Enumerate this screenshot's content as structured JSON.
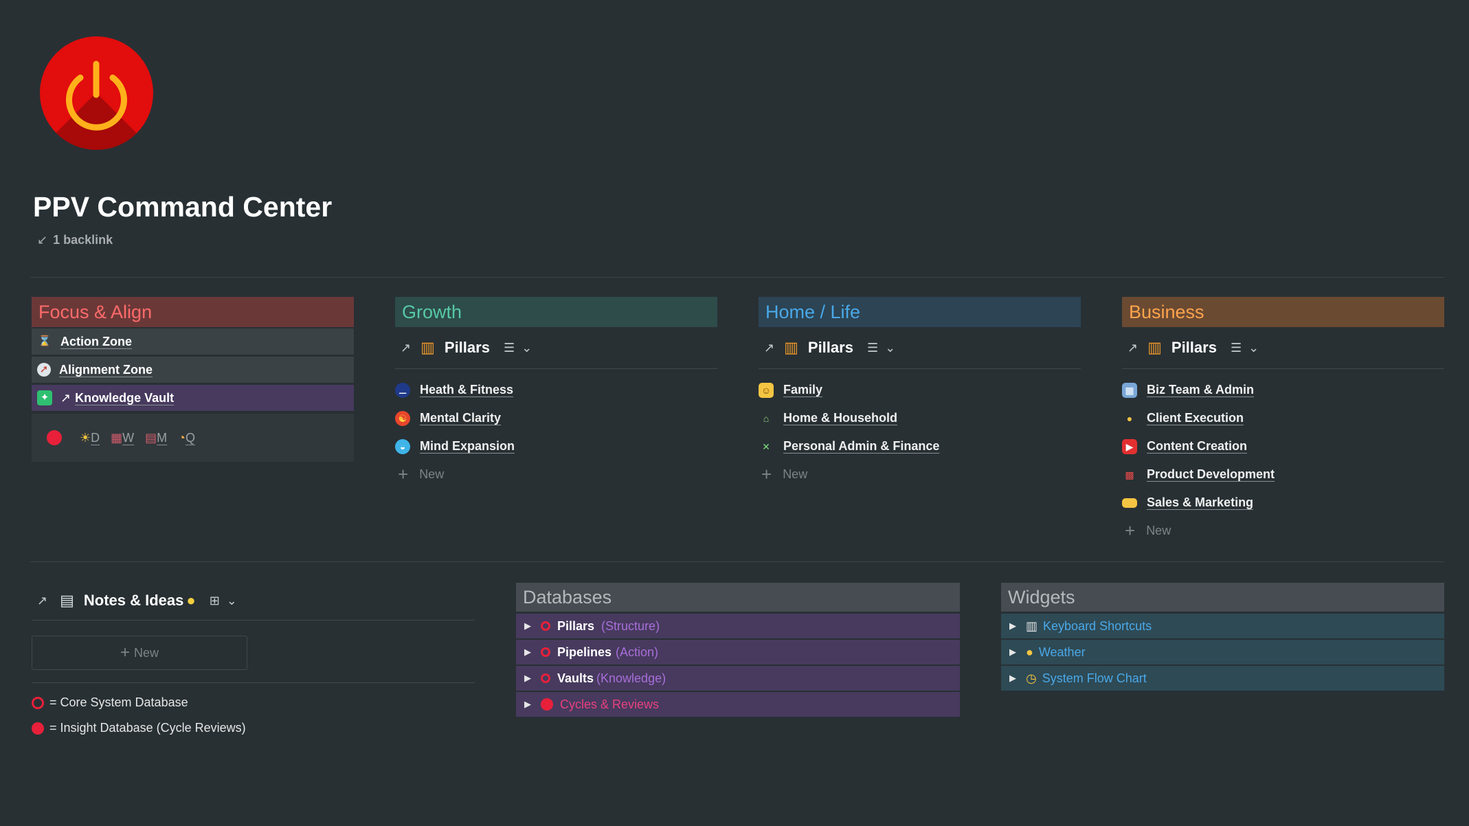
{
  "page": {
    "title": "PPV Command Center",
    "backlink": "1 backlink",
    "logo_icon": "power-icon"
  },
  "focus": {
    "header": "Focus & Align",
    "items": [
      {
        "icon": "hourglass-icon",
        "label": "Action Zone"
      },
      {
        "icon": "compass-icon",
        "label": "Alignment Zone"
      },
      {
        "icon": "brain-icon",
        "label": "Knowledge Vault",
        "prefix": "↗"
      }
    ],
    "cycles": [
      "D",
      "W",
      "M",
      "Q"
    ]
  },
  "growth": {
    "header": "Growth",
    "pillars_label": "Pillars",
    "items": [
      "Heath & Fitness",
      "Mental Clarity",
      "Mind Expansion"
    ],
    "new_label": "New"
  },
  "home": {
    "header": "Home / Life",
    "pillars_label": "Pillars",
    "items": [
      "Family",
      "Home & Household",
      "Personal Admin & Finance"
    ],
    "new_label": "New"
  },
  "business": {
    "header": "Business",
    "pillars_label": "Pillars",
    "items": [
      "Biz Team & Admin",
      "Client Execution",
      "Content Creation",
      "Product Development",
      "Sales & Marketing"
    ],
    "new_label": "New"
  },
  "notes": {
    "title": "Notes & Ideas",
    "new_label": "New",
    "legend": [
      "= Core System Database",
      "= Insight Database (Cycle Reviews)"
    ]
  },
  "databases": {
    "header": "Databases",
    "rows": [
      {
        "name": "Pillars",
        "tag": "(Structure)"
      },
      {
        "name": "Pipelines",
        "tag": "(Action)"
      },
      {
        "name": "Vaults",
        "tag": "(Knowledge)"
      },
      {
        "name": "Cycles & Reviews",
        "tag": ""
      }
    ]
  },
  "widgets": {
    "header": "Widgets",
    "rows": [
      "Keyboard Shortcuts",
      "Weather",
      "System Flow Chart"
    ]
  },
  "colors": {
    "focus_head": "#6b3838",
    "growth_head": "#2d4c4a",
    "home_head": "#2c4454",
    "business_head": "#6b4a32",
    "focus_text": "#ff6b6b",
    "growth_text": "#57c9a5",
    "home_text": "#4aa8e8",
    "business_text": "#ffa44d",
    "purple_row": "#473a5e",
    "teal_row": "#2e4a55",
    "accent_red": "#e8203a"
  }
}
